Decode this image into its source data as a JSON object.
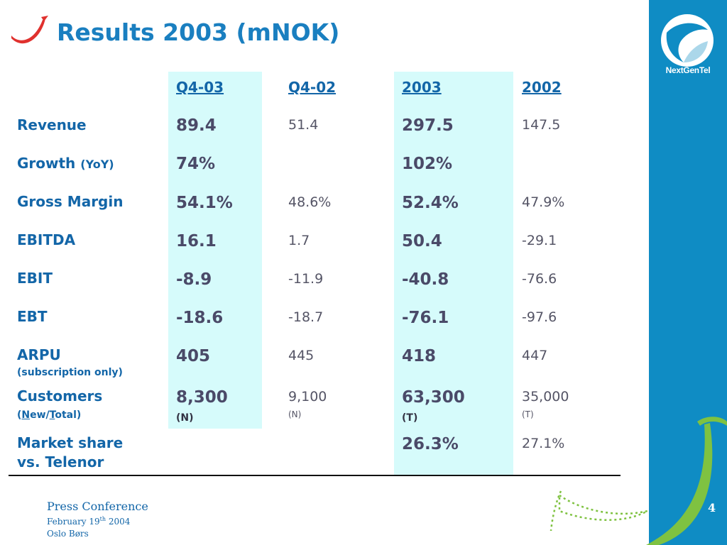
{
  "slide": {
    "title": "Results 2003 (mNOK)",
    "brand_name": "NextGenTel",
    "brand_color": "#0f8cc4",
    "accent_color": "#1366a8",
    "highlight_color": "#d6fbfb"
  },
  "table": {
    "headers": [
      "Q4-03",
      "Q4-02",
      "2003",
      "2002"
    ],
    "rows": {
      "revenue": {
        "label": "Revenue",
        "q403": "89.4",
        "q402": "51.4",
        "y2003": "297.5",
        "y2002": "147.5"
      },
      "growth": {
        "label": "Growth",
        "label_small": "(YoY)",
        "q403": "74%",
        "y2003": "102%"
      },
      "gross_margin": {
        "label": "Gross Margin",
        "q403": "54.1%",
        "q402": "48.6%",
        "y2003": "52.4%",
        "y2002": "47.9%"
      },
      "ebitda": {
        "label": "EBITDA",
        "q403": "16.1",
        "q402": "1.7",
        "y2003": "50.4",
        "y2002": "-29.1"
      },
      "ebit": {
        "label": "EBIT",
        "q403": "-8.9",
        "q402": "-11.9",
        "y2003": "-40.8",
        "y2002": "-76.6"
      },
      "ebt": {
        "label": "EBT",
        "q403": "-18.6",
        "q402": "-18.7",
        "y2003": "-76.1",
        "y2002": "-97.6"
      },
      "arpu": {
        "label": "ARPU",
        "sublabel": "(subscription only)",
        "q403": "405",
        "q402": "445",
        "y2003": "418",
        "y2002": "447"
      },
      "customers": {
        "label": "Customers",
        "sublabel_parts": [
          "(",
          "N",
          "ew/",
          "T",
          "otal)"
        ],
        "q403": "8,300",
        "q403_note": "(N)",
        "q402": "9,100",
        "q402_note": "(N)",
        "y2003": "63,300",
        "y2003_note": "(T)",
        "y2002": "35,000",
        "y2002_note": "(T)"
      },
      "market_share": {
        "label_line1": "Market share",
        "label_line2": "vs. Telenor",
        "y2003": "26.3%",
        "y2002": "27.1%"
      }
    }
  },
  "footer": {
    "event": "Press Conference",
    "date_prefix": "February 19",
    "date_sup": "th",
    "date_suffix": " 2004",
    "location": "Oslo Børs",
    "page_number": "4"
  }
}
